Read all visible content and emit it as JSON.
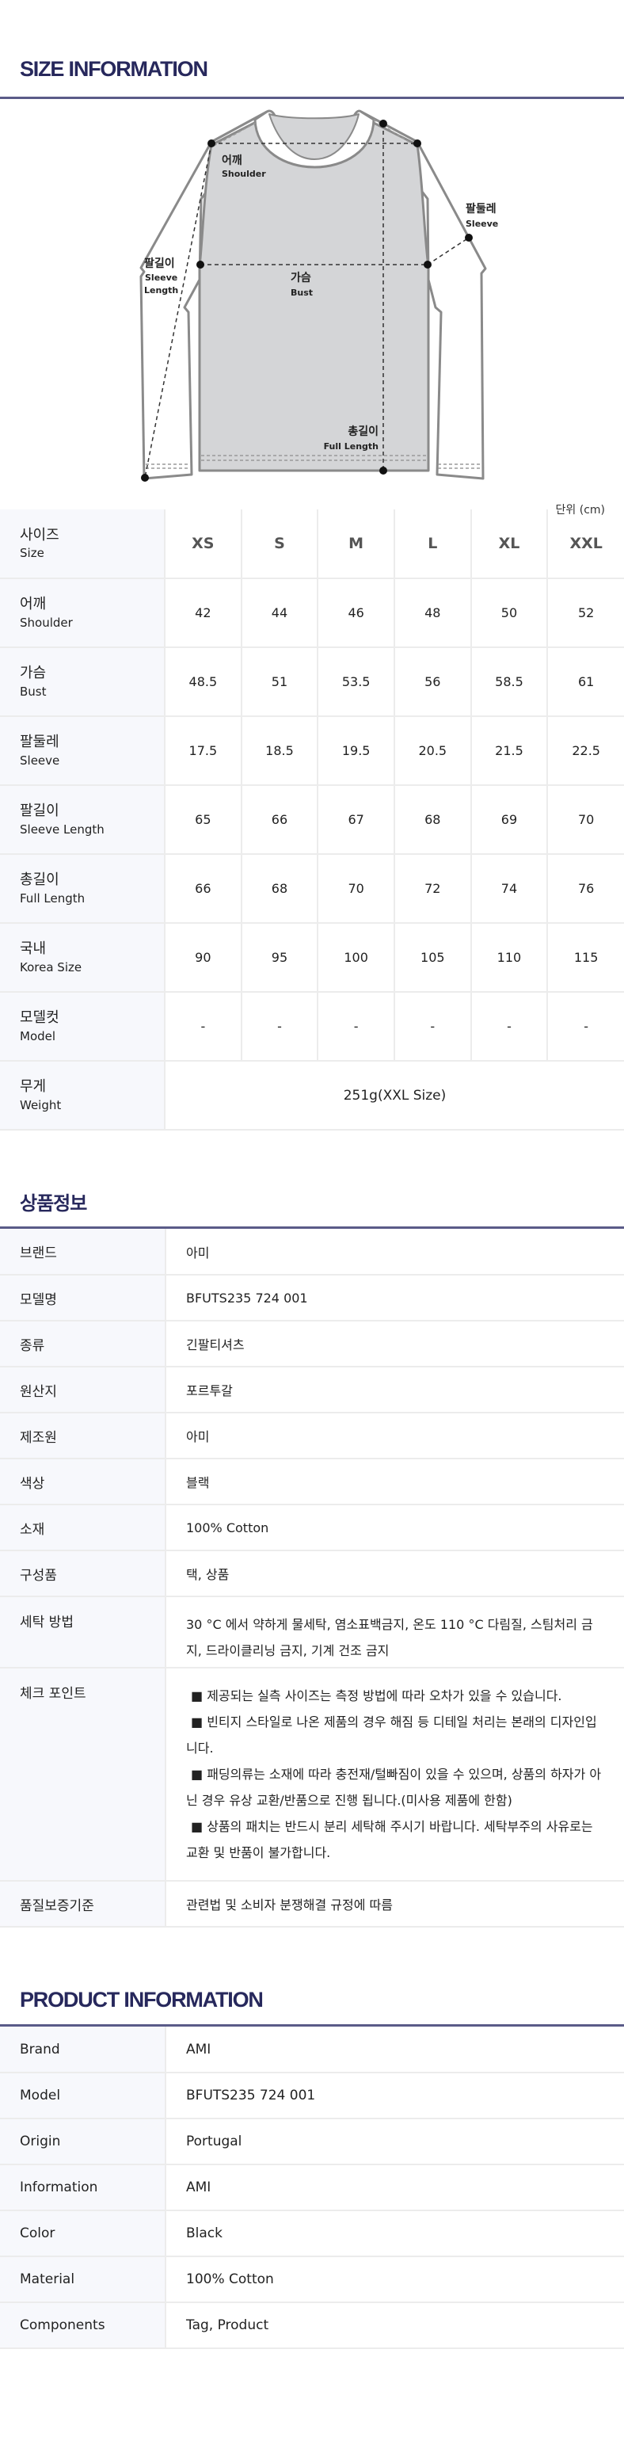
{
  "size_section": {
    "title": "SIZE INFORMATION",
    "unit": "단위 (cm)",
    "diagram_labels": {
      "shoulder_ko": "어깨",
      "shoulder_en": "Shoulder",
      "sleeve_ko": "팔둘레",
      "sleeve_en": "Sleeve",
      "sleeve_length_ko": "팔길이",
      "sleeve_length_en1": "Sleeve",
      "sleeve_length_en2": "Length",
      "bust_ko": "가슴",
      "bust_en": "Bust",
      "full_length_ko": "총길이",
      "full_length_en": "Full Length"
    },
    "header": {
      "ko": "사이즈",
      "en": "Size",
      "sizes": [
        "XS",
        "S",
        "M",
        "L",
        "XL",
        "XXL"
      ]
    },
    "rows": [
      {
        "ko": "어깨",
        "en": "Shoulder",
        "values": [
          "42",
          "44",
          "46",
          "48",
          "50",
          "52"
        ]
      },
      {
        "ko": "가슴",
        "en": "Bust",
        "values": [
          "48.5",
          "51",
          "53.5",
          "56",
          "58.5",
          "61"
        ]
      },
      {
        "ko": "팔둘레",
        "en": "Sleeve",
        "values": [
          "17.5",
          "18.5",
          "19.5",
          "20.5",
          "21.5",
          "22.5"
        ]
      },
      {
        "ko": "팔길이",
        "en": "Sleeve Length",
        "values": [
          "65",
          "66",
          "67",
          "68",
          "69",
          "70"
        ]
      },
      {
        "ko": "총길이",
        "en": "Full Length",
        "values": [
          "66",
          "68",
          "70",
          "72",
          "74",
          "76"
        ]
      },
      {
        "ko": "국내",
        "en": "Korea Size",
        "values": [
          "90",
          "95",
          "100",
          "105",
          "110",
          "115"
        ]
      },
      {
        "ko": "모델컷",
        "en": "Model",
        "values": [
          "-",
          "-",
          "-",
          "-",
          "-",
          "-"
        ]
      }
    ],
    "weight": {
      "ko": "무게",
      "en": "Weight",
      "value": "251g(XXL Size)"
    }
  },
  "product_info_ko": {
    "title": "상품정보",
    "rows": [
      {
        "label": "브랜드",
        "value": "아미"
      },
      {
        "label": "모델명",
        "value": "BFUTS235 724 001"
      },
      {
        "label": "종류",
        "value": "긴팔티셔츠"
      },
      {
        "label": "원산지",
        "value": "포르투갈"
      },
      {
        "label": "제조원",
        "value": "아미"
      },
      {
        "label": "색상",
        "value": "블랙"
      },
      {
        "label": "소재",
        "value": "100% Cotton"
      },
      {
        "label": "구성품",
        "value": "택, 상품"
      },
      {
        "label": "세탁 방법",
        "value": "30 °C 에서 약하게 물세탁, 염소표백금지, 온도 110 °C 다림질, 스팀처리 금지, 드라이클리닝 금지, 기계 건조 금지"
      }
    ],
    "checkpoint": {
      "label": "체크 포인트",
      "items": [
        "■ 제공되는 실측 사이즈는 측정 방법에 따라 오차가 있을 수 있습니다.",
        "■ 빈티지 스타일로 나온 제품의 경우 해짐 등 디테일 처리는 본래의 디자인입니다.",
        "■ 패딩의류는 소재에 따라 충전재/털빠짐이 있을 수 있으며, 상품의 하자가 아닌 경우 유상 교환/반품으로 진행 됩니다.(미사용 제품에 한함)",
        "■ 상품의 패치는 반드시 분리 세탁해 주시기 바랍니다. 세탁부주의 사유로는 교환 및 반품이 불가합니다."
      ]
    },
    "quality": {
      "label": "품질보증기준",
      "value": "관련법 및 소비자 분쟁해결 규정에 따름"
    }
  },
  "product_info_en": {
    "title": "PRODUCT INFORMATION",
    "rows": [
      {
        "label": "Brand",
        "value": "AMI"
      },
      {
        "label": "Model",
        "value": "BFUTS235 724 001"
      },
      {
        "label": "Origin",
        "value": "Portugal"
      },
      {
        "label": "Information",
        "value": "AMI"
      },
      {
        "label": "Color",
        "value": "Black"
      },
      {
        "label": "Material",
        "value": "100% Cotton"
      },
      {
        "label": "Components",
        "value": "Tag, Product"
      }
    ]
  },
  "colors": {
    "title": "#27285c",
    "rule": "#5a5b88",
    "label_bg": "#f7f8fc",
    "garment_fill": "#d4d5d7",
    "garment_outline": "#8a8a8a"
  }
}
